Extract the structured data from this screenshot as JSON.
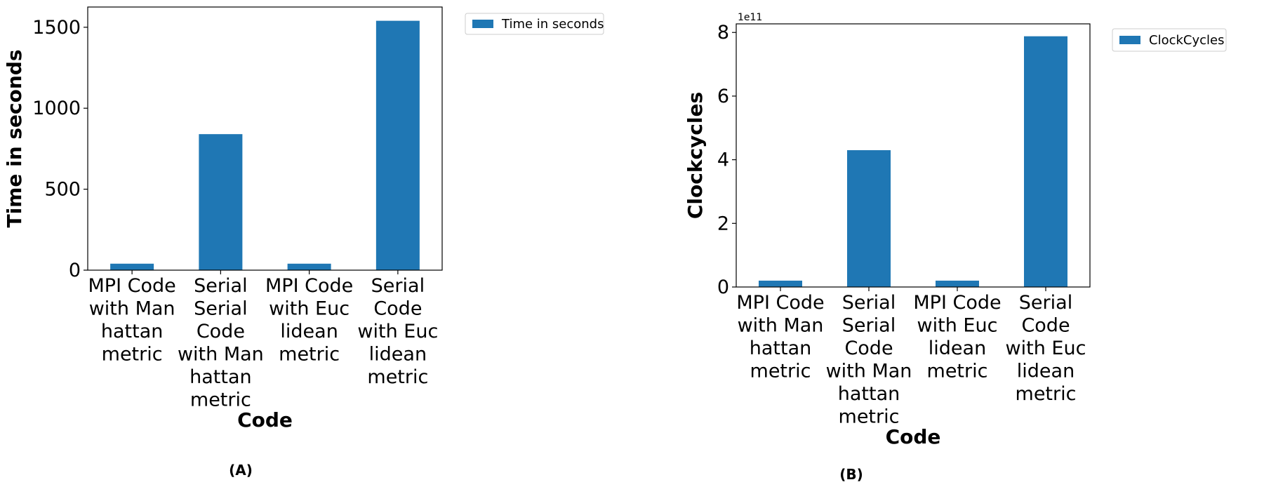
{
  "colors": {
    "bar": "#1f77b4",
    "axis": "#000000",
    "legend_border": "#cccccc"
  },
  "chart_data": [
    {
      "type": "bar",
      "panel_caption": "(A)",
      "categories": [
        [
          "MPI Code",
          "with Man",
          "hattan",
          "metric"
        ],
        [
          "Serial",
          "Serial",
          "Code",
          "with Man",
          "hattan",
          "metric"
        ],
        [
          "MPI Code",
          "with Euc",
          "lidean",
          "metric"
        ],
        [
          "Serial",
          "Code",
          "with Euc",
          "lidean",
          "metric"
        ]
      ],
      "series": [
        {
          "name": "Time in seconds",
          "values": [
            40,
            840,
            40,
            1540
          ]
        }
      ],
      "xlabel": "Code",
      "ylabel": "Time in seconds",
      "ylim": [
        0,
        1625
      ],
      "yticks": [
        0,
        500,
        1000,
        1500
      ],
      "ytick_labels": [
        "0",
        "500",
        "1000",
        "1500"
      ],
      "offset_text": "",
      "legend": "upper right outside",
      "grid": false
    },
    {
      "type": "bar",
      "panel_caption": "(B)",
      "categories": [
        [
          "MPI Code",
          "with Man",
          "hattan",
          "metric"
        ],
        [
          "Serial",
          "Serial",
          "Code",
          "with Man",
          "hattan",
          "metric"
        ],
        [
          "MPI Code",
          "with Euc",
          "lidean",
          "metric"
        ],
        [
          "Serial",
          "Code",
          "with Euc",
          "lidean",
          "metric"
        ]
      ],
      "series": [
        {
          "name": "ClockCycles",
          "values": [
            0.2,
            4.3,
            0.2,
            7.88
          ]
        }
      ],
      "xlabel": "Code",
      "ylabel": "Clockcycles",
      "ylim": [
        0,
        8.27
      ],
      "yticks": [
        0,
        2,
        4,
        6,
        8
      ],
      "ytick_labels": [
        "0",
        "2",
        "4",
        "6",
        "8"
      ],
      "offset_text": "1e11",
      "legend": "upper right outside",
      "grid": false
    }
  ]
}
